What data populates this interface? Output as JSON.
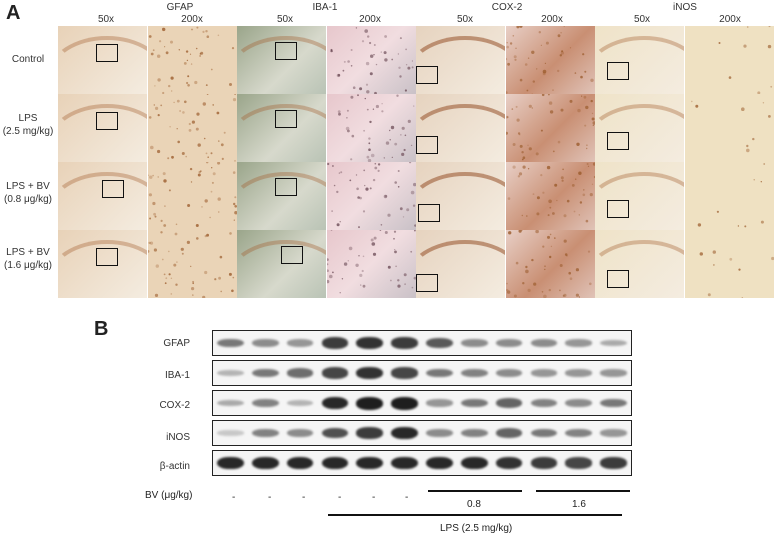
{
  "panel_a": {
    "letter": "A",
    "markers": [
      {
        "name": "GFAP",
        "mag_low": "50x",
        "mag_high": "200x"
      },
      {
        "name": "IBA-1",
        "mag_low": "50x",
        "mag_high": "200x"
      },
      {
        "name": "COX-2",
        "mag_low": "50x",
        "mag_high": "200x"
      },
      {
        "name": "iNOS",
        "mag_low": "50x",
        "mag_high": "200x"
      }
    ],
    "rows": [
      {
        "line1": "Control",
        "line2": ""
      },
      {
        "line1": "LPS",
        "line2": "(2.5 mg/kg)"
      },
      {
        "line1": "LPS + BV",
        "line2": "(0.8 μg/kg)"
      },
      {
        "line1": "LPS + BV",
        "line2": "(1.6 μg/kg)"
      }
    ],
    "stain_colors": {
      "GFAP": "#e8d2b8",
      "IBA-1": "#c9cfbe",
      "COX-2": "#e6d3bf",
      "iNOS": "#efe3c8"
    }
  },
  "panel_b": {
    "letter": "B",
    "proteins": [
      "GFAP",
      "IBA-1",
      "COX-2",
      "iNOS",
      "β-actin"
    ],
    "bv_label": "BV (μg/kg)",
    "bv_dashes": [
      "-",
      "-",
      "-",
      "-",
      "-",
      "-"
    ],
    "bv_dose_1": "0.8",
    "bv_dose_2": "1.6",
    "lps_label": "LPS (2.5 mg/kg)",
    "band_intensity": {
      "GFAP": [
        0.55,
        0.45,
        0.4,
        0.85,
        0.9,
        0.85,
        0.7,
        0.45,
        0.45,
        0.45,
        0.4,
        0.3
      ],
      "IBA-1": [
        0.25,
        0.55,
        0.6,
        0.8,
        0.9,
        0.8,
        0.55,
        0.5,
        0.45,
        0.4,
        0.4,
        0.4
      ],
      "COX-2": [
        0.3,
        0.5,
        0.25,
        0.95,
        1.0,
        1.0,
        0.4,
        0.55,
        0.65,
        0.5,
        0.45,
        0.55
      ],
      "iNOS": [
        0.15,
        0.5,
        0.45,
        0.75,
        0.85,
        0.95,
        0.45,
        0.5,
        0.65,
        0.55,
        0.5,
        0.4
      ],
      "β-actin": [
        0.95,
        0.95,
        0.95,
        0.95,
        0.95,
        0.95,
        0.95,
        0.95,
        0.9,
        0.85,
        0.8,
        0.85
      ]
    }
  }
}
